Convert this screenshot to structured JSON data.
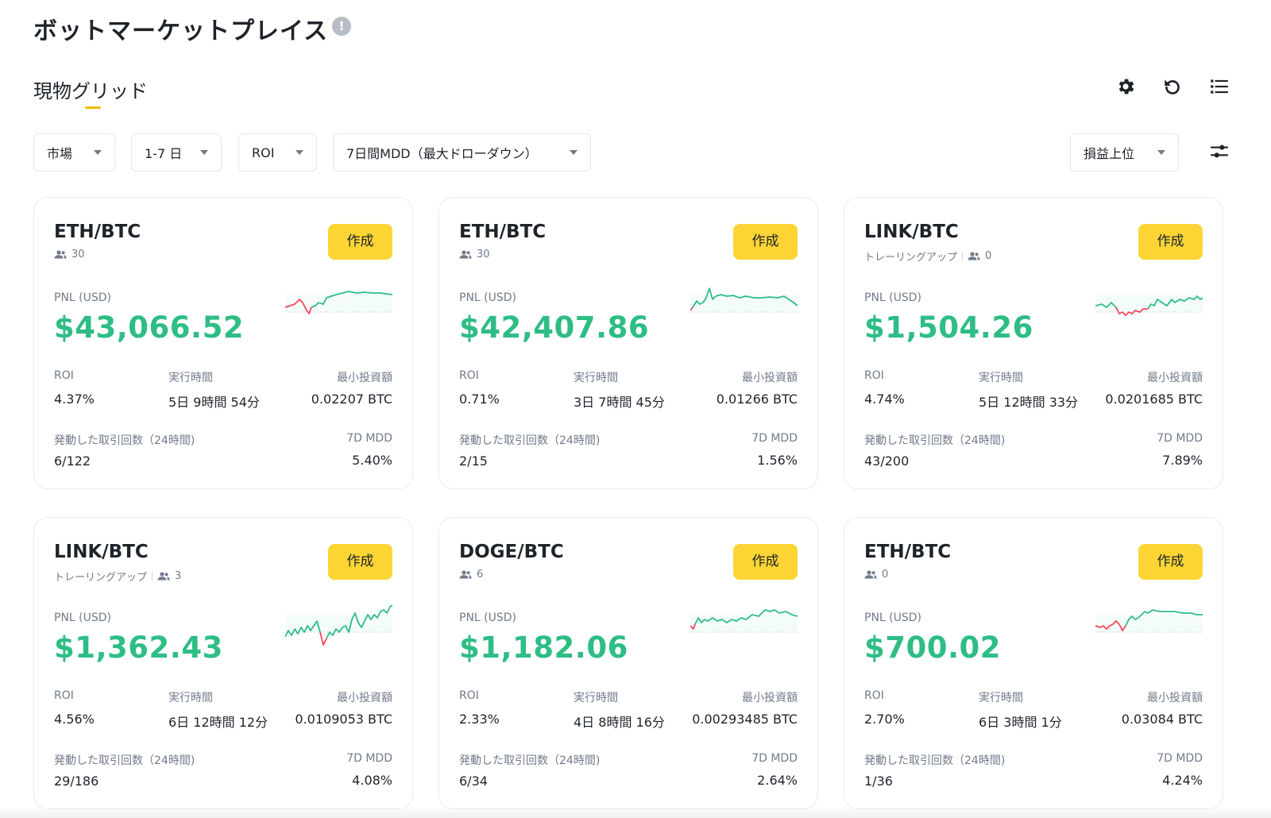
{
  "header": {
    "title": "ボットマーケットプレイス",
    "info_icon": "!"
  },
  "tab": {
    "label": "現物グリッド"
  },
  "toolbar_icons": [
    "gear-icon",
    "refresh-icon",
    "list-icon"
  ],
  "filters": {
    "market": "市場",
    "period": "1-7 日",
    "roi": "ROI",
    "mdd": "7日間MDD（最大ドローダウン）",
    "sort": "損益上位"
  },
  "labels": {
    "pnl": "PNL (USD)",
    "roi": "ROI",
    "runtime": "実行時間",
    "min_invest": "最小投資額",
    "trades": "発動した取引回数（24時間)",
    "mdd": "7D MDD",
    "create": "作成"
  },
  "colors": {
    "accent": "#fcd535",
    "profit": "#2ebd85",
    "loss": "#f6465d"
  },
  "cards": [
    {
      "pair": "ETH/BTC",
      "tag": "",
      "users": "30",
      "pnl": "$43,066.52",
      "roi": "4.37%",
      "runtime": "5日 9時間 54分",
      "min_invest": "0.02207 BTC",
      "trades": "6/122",
      "mdd": "5.40%"
    },
    {
      "pair": "ETH/BTC",
      "tag": "",
      "users": "30",
      "pnl": "$42,407.86",
      "roi": "0.71%",
      "runtime": "3日 7時間 45分",
      "min_invest": "0.01266 BTC",
      "trades": "2/15",
      "mdd": "1.56%"
    },
    {
      "pair": "LINK/BTC",
      "tag": "トレーリングアップ",
      "users": "0",
      "pnl": "$1,504.26",
      "roi": "4.74%",
      "runtime": "5日 12時間 33分",
      "min_invest": "0.0201685 BTC",
      "trades": "43/200",
      "mdd": "7.89%"
    },
    {
      "pair": "LINK/BTC",
      "tag": "トレーリングアップ",
      "users": "3",
      "pnl": "$1,362.43",
      "roi": "4.56%",
      "runtime": "6日 12時間 12分",
      "min_invest": "0.0109053 BTC",
      "trades": "29/186",
      "mdd": "4.08%"
    },
    {
      "pair": "DOGE/BTC",
      "tag": "",
      "users": "6",
      "pnl": "$1,182.06",
      "roi": "2.33%",
      "runtime": "4日 8時間 16分",
      "min_invest": "0.00293485 BTC",
      "trades": "6/34",
      "mdd": "2.64%"
    },
    {
      "pair": "ETH/BTC",
      "tag": "",
      "users": "0",
      "pnl": "$700.02",
      "roi": "2.70%",
      "runtime": "6日 3時間 1分",
      "min_invest": "0.03084 BTC",
      "trades": "1/36",
      "mdd": "4.24%"
    }
  ]
}
